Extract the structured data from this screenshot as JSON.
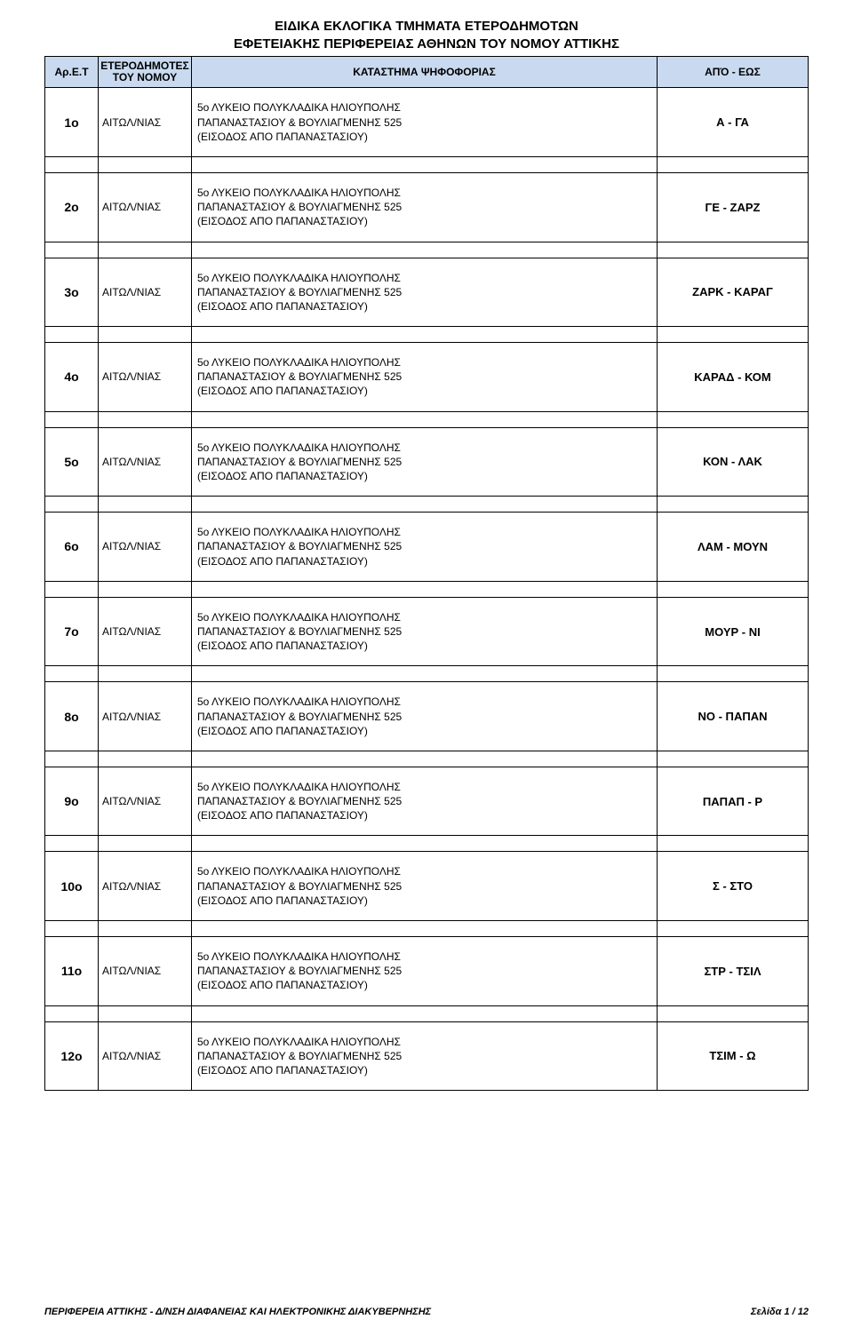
{
  "title_line1": "ΕΙΔΙΚΑ ΕΚΛΟΓΙΚΑ ΤΜΗΜΑΤΑ ΕΤΕΡΟΔΗΜΟΤΩΝ",
  "title_line2": "ΕΦΕΤΕΙΑΚΗΣ ΠΕΡΙΦΕΡΕΙΑΣ ΑΘΗΝΩΝ ΤΟΥ ΝΟΜΟΥ ΑΤΤΙΚΗΣ",
  "headers": {
    "col1": "Αρ.Ε.Τ",
    "col2_line1": "ΕΤΕΡΟΔΗΜΟΤΕΣ",
    "col2_line2": "ΤΟΥ ΝΟΜΟΥ",
    "col3": "ΚΑΤΑΣΤΗΜΑ ΨΗΦΟΦΟΡΙΑΣ",
    "col4": "ΑΠΌ - ΕΩΣ"
  },
  "katastima_line1": "5ο ΛΥΚΕΙΟ ΠΟΛΥΚΛΑΔΙΚΑ  ΗΛΙΟΥΠΟΛΗΣ",
  "katastima_line2": "ΠΑΠΑΝΑΣΤΑΣΙΟΥ & ΒΟΥΛΙΑΓΜΕΝΗΣ 525",
  "katastima_line3": "(ΕΙΣΟΔΟΣ ΑΠΟ ΠΑΠΑΝΑΣΤΑΣΙΟΥ)",
  "rows": [
    {
      "id": "1ο",
      "nomos": "ΑΙΤΩΛ/ΝΙΑΣ",
      "range": "Α - ΓΑ"
    },
    {
      "id": "2ο",
      "nomos": "ΑΙΤΩΛ/ΝΙΑΣ",
      "range": "ΓΕ - ΖΑΡΖ"
    },
    {
      "id": "3ο",
      "nomos": "ΑΙΤΩΛ/ΝΙΑΣ",
      "range": "ΖΑΡΚ - ΚΑΡΑΓ"
    },
    {
      "id": "4ο",
      "nomos": "ΑΙΤΩΛ/ΝΙΑΣ",
      "range": "ΚΑΡΑΔ - ΚΟΜ"
    },
    {
      "id": "5ο",
      "nomos": "ΑΙΤΩΛ/ΝΙΑΣ",
      "range": "ΚΟΝ - ΛΑΚ"
    },
    {
      "id": "6ο",
      "nomos": "ΑΙΤΩΛ/ΝΙΑΣ",
      "range": "ΛΑΜ - ΜΟΥΝ"
    },
    {
      "id": "7ο",
      "nomos": "ΑΙΤΩΛ/ΝΙΑΣ",
      "range": "ΜΟΥΡ - ΝΙ"
    },
    {
      "id": "8ο",
      "nomos": "ΑΙΤΩΛ/ΝΙΑΣ",
      "range": "ΝΟ - ΠΑΠΑΝ"
    },
    {
      "id": "9ο",
      "nomos": "ΑΙΤΩΛ/ΝΙΑΣ",
      "range": "ΠΑΠΑΠ - Ρ"
    },
    {
      "id": "10ο",
      "nomos": "ΑΙΤΩΛ/ΝΙΑΣ",
      "range": "Σ - ΣΤΟ"
    },
    {
      "id": "11ο",
      "nomos": "ΑΙΤΩΛ/ΝΙΑΣ",
      "range": "ΣΤΡ - ΤΣΙΛ"
    },
    {
      "id": "12ο",
      "nomos": "ΑΙΤΩΛ/ΝΙΑΣ",
      "range": "ΤΣΙΜ - Ω"
    }
  ],
  "footer_left": "ΠΕΡΙΦΕΡΕΙΑ ΑΤΤΙΚΗΣ - Δ/ΝΣΗ  ΔΙΑΦΑΝΕΙΑΣ ΚΑΙ ΗΛΕΚΤΡΟΝΙΚΗΣ ΔΙΑΚΥΒΕΡΝΗΣΗΣ",
  "footer_right": "Σελίδα 1 / 12",
  "colors": {
    "header_bg": "#c9daf0",
    "border": "#000000",
    "text": "#000000",
    "page_bg": "#ffffff"
  }
}
